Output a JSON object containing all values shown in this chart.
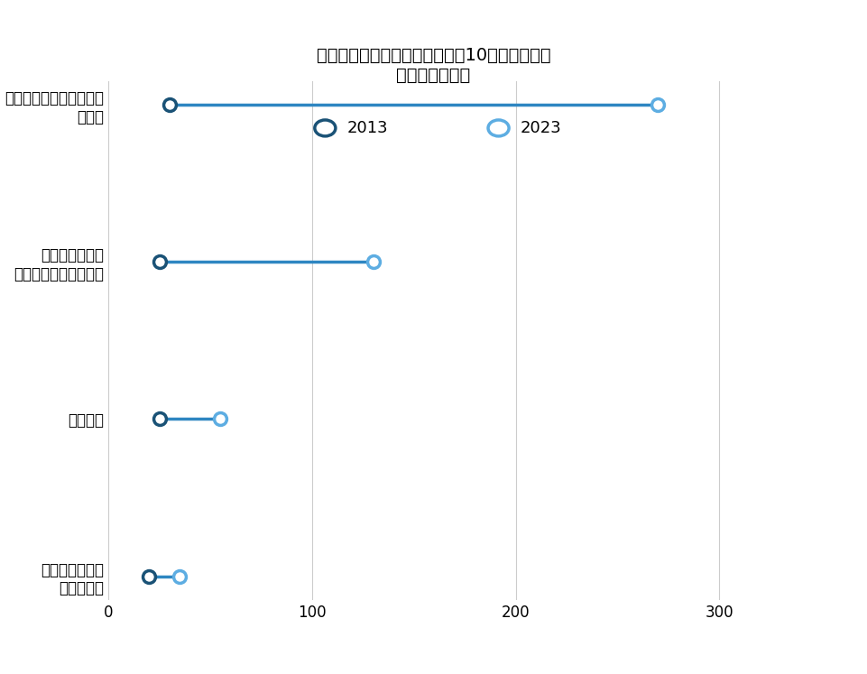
{
  "title_line1": "主要なセクターにおける評価額10億ドル以上の",
  "title_line2": "中国籍企業の数",
  "categories": [
    "ハイテクハードウェア・\n半導体",
    "ソフトウェア＆\nテクノロジーサービス",
    "メディア",
    "小売り・卸売ー\n一般消費財"
  ],
  "values_2013": [
    30,
    25,
    25,
    20
  ],
  "values_2023": [
    270,
    130,
    55,
    35
  ],
  "color_2013": "#1a5276",
  "color_2023": "#5dade2",
  "line_color": "#2e86c1",
  "background_color": "#ffffff",
  "xlim": [
    0,
    330
  ],
  "xticks": [
    0,
    100,
    200,
    300
  ],
  "legend_2013": "2013",
  "legend_2023": "2023",
  "title_fontsize": 14,
  "label_fontsize": 12,
  "tick_fontsize": 12,
  "marker_size": 10,
  "line_width": 2.5
}
